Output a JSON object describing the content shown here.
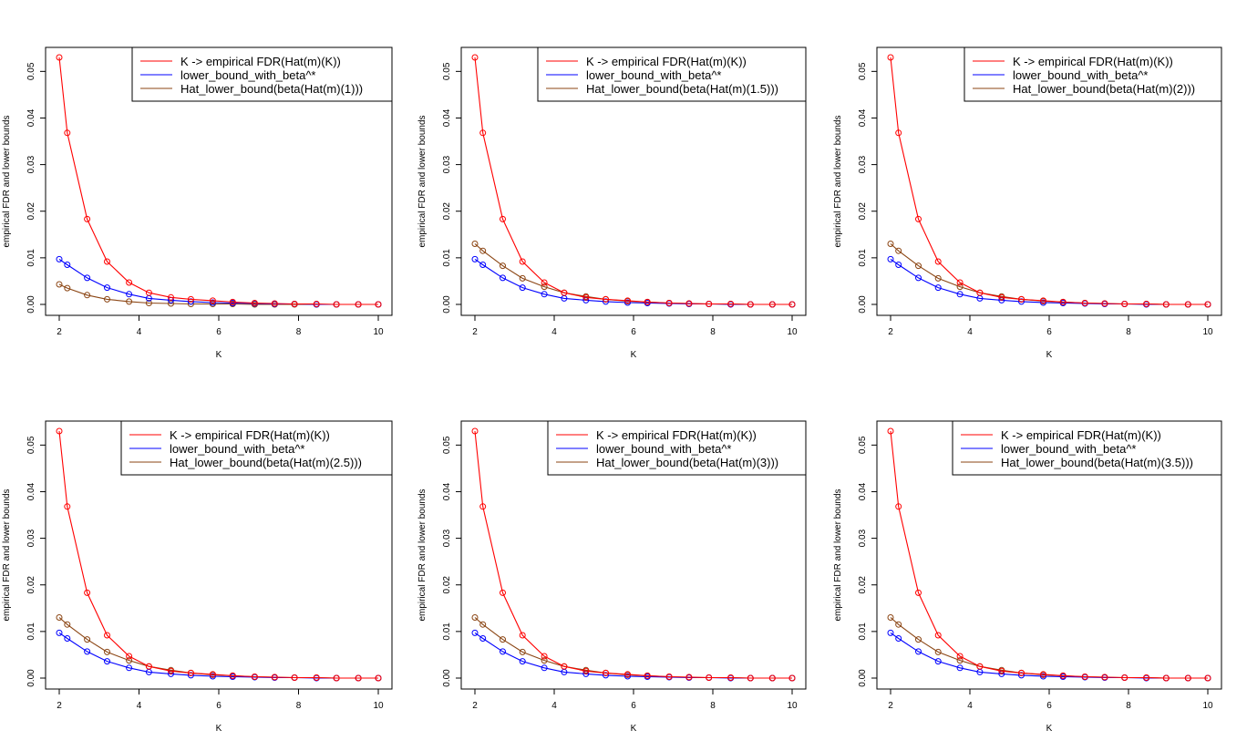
{
  "colors": {
    "empirical": "#ff0000",
    "lower_bound": "#0000ff",
    "hat_lower_bound": "#8b4513"
  },
  "chart_data": [
    {
      "type": "line",
      "xlabel": "K",
      "ylabel": "empirical FDR and lower bounds",
      "xlim": [
        2,
        10
      ],
      "ylim": [
        0,
        0.055
      ],
      "xticks": [
        "2",
        "4",
        "6",
        "8",
        "10"
      ],
      "yticks": [
        "0.00",
        "0.01",
        "0.02",
        "0.03",
        "0.04",
        "0.05"
      ],
      "legend_position": "top-right",
      "x": [
        2.0,
        2.2,
        2.7,
        3.2,
        3.75,
        4.25,
        4.8,
        5.3,
        5.85,
        6.35,
        6.9,
        7.4,
        7.9,
        8.45,
        8.95,
        9.5,
        10.0
      ],
      "series": [
        {
          "name": "K -> empirical FDR(Hat(m)(K))",
          "color": "#ff0000",
          "values": [
            0.053,
            0.0368,
            0.0183,
            0.0092,
            0.0047,
            0.0025,
            0.0015,
            0.0011,
            0.0008,
            0.0005,
            0.0003,
            0.0002,
            0.0001,
            0.0001,
            0.0,
            0.0,
            0.0
          ]
        },
        {
          "name": "lower_bound_with_beta^*",
          "color": "#0000ff",
          "values": [
            0.0097,
            0.0085,
            0.0057,
            0.0036,
            0.0022,
            0.0013,
            0.0009,
            0.0006,
            0.0004,
            0.0003,
            0.0002,
            0.0001,
            0.0001,
            0.0,
            0.0,
            0.0,
            0.0
          ]
        },
        {
          "name": "Hat_lower_bound(beta(Hat(m)(1)))",
          "color": "#8b4513",
          "values": [
            0.0043,
            0.0035,
            0.002,
            0.0011,
            0.0006,
            0.0003,
            0.0002,
            0.0001,
            0.0001,
            0.0001,
            0.0,
            0.0,
            0.0,
            0.0,
            0.0,
            0.0,
            0.0
          ]
        }
      ]
    },
    {
      "type": "line",
      "xlabel": "K",
      "ylabel": "empirical FDR and lower bounds",
      "xlim": [
        2,
        10
      ],
      "ylim": [
        0,
        0.055
      ],
      "xticks": [
        "2",
        "4",
        "6",
        "8",
        "10"
      ],
      "yticks": [
        "0.00",
        "0.01",
        "0.02",
        "0.03",
        "0.04",
        "0.05"
      ],
      "legend_position": "top-right",
      "x": [
        2.0,
        2.2,
        2.7,
        3.2,
        3.75,
        4.25,
        4.8,
        5.3,
        5.85,
        6.35,
        6.9,
        7.4,
        7.9,
        8.45,
        8.95,
        9.5,
        10.0
      ],
      "series": [
        {
          "name": "K -> empirical FDR(Hat(m)(K))",
          "color": "#ff0000",
          "values": [
            0.053,
            0.0368,
            0.0183,
            0.0092,
            0.0047,
            0.0025,
            0.0015,
            0.0011,
            0.0008,
            0.0005,
            0.0003,
            0.0002,
            0.0001,
            0.0001,
            0.0,
            0.0,
            0.0
          ]
        },
        {
          "name": "lower_bound_with_beta^*",
          "color": "#0000ff",
          "values": [
            0.0097,
            0.0085,
            0.0057,
            0.0036,
            0.0022,
            0.0013,
            0.0009,
            0.0006,
            0.0004,
            0.0003,
            0.0002,
            0.0001,
            0.0001,
            0.0,
            0.0,
            0.0,
            0.0
          ]
        },
        {
          "name": "Hat_lower_bound(beta(Hat(m)(1.5)))",
          "color": "#8b4513",
          "values": [
            0.013,
            0.0115,
            0.0083,
            0.0056,
            0.0038,
            0.0025,
            0.0017,
            0.0011,
            0.0007,
            0.0005,
            0.0003,
            0.0002,
            0.0001,
            0.0001,
            0.0,
            0.0,
            0.0
          ]
        }
      ]
    },
    {
      "type": "line",
      "xlabel": "K",
      "ylabel": "empirical FDR and lower bounds",
      "xlim": [
        2,
        10
      ],
      "ylim": [
        0,
        0.055
      ],
      "xticks": [
        "2",
        "4",
        "6",
        "8",
        "10"
      ],
      "yticks": [
        "0.00",
        "0.01",
        "0.02",
        "0.03",
        "0.04",
        "0.05"
      ],
      "legend_position": "top-right",
      "x": [
        2.0,
        2.2,
        2.7,
        3.2,
        3.75,
        4.25,
        4.8,
        5.3,
        5.85,
        6.35,
        6.9,
        7.4,
        7.9,
        8.45,
        8.95,
        9.5,
        10.0
      ],
      "series": [
        {
          "name": "K -> empirical FDR(Hat(m)(K))",
          "color": "#ff0000",
          "values": [
            0.053,
            0.0368,
            0.0183,
            0.0092,
            0.0047,
            0.0025,
            0.0015,
            0.0011,
            0.0008,
            0.0005,
            0.0003,
            0.0002,
            0.0001,
            0.0001,
            0.0,
            0.0,
            0.0
          ]
        },
        {
          "name": "lower_bound_with_beta^*",
          "color": "#0000ff",
          "values": [
            0.0097,
            0.0085,
            0.0057,
            0.0036,
            0.0022,
            0.0013,
            0.0009,
            0.0006,
            0.0004,
            0.0003,
            0.0002,
            0.0001,
            0.0001,
            0.0,
            0.0,
            0.0,
            0.0
          ]
        },
        {
          "name": "Hat_lower_bound(beta(Hat(m)(2)))",
          "color": "#8b4513",
          "values": [
            0.013,
            0.0115,
            0.0083,
            0.0056,
            0.0038,
            0.0025,
            0.0017,
            0.0011,
            0.0007,
            0.0005,
            0.0003,
            0.0002,
            0.0001,
            0.0001,
            0.0,
            0.0,
            0.0
          ]
        }
      ]
    },
    {
      "type": "line",
      "xlabel": "K",
      "ylabel": "empirical FDR and lower bounds",
      "xlim": [
        2,
        10
      ],
      "ylim": [
        0,
        0.055
      ],
      "xticks": [
        "2",
        "4",
        "6",
        "8",
        "10"
      ],
      "yticks": [
        "0.00",
        "0.01",
        "0.02",
        "0.03",
        "0.04",
        "0.05"
      ],
      "legend_position": "top-right",
      "x": [
        2.0,
        2.2,
        2.7,
        3.2,
        3.75,
        4.25,
        4.8,
        5.3,
        5.85,
        6.35,
        6.9,
        7.4,
        7.9,
        8.45,
        8.95,
        9.5,
        10.0
      ],
      "series": [
        {
          "name": "K -> empirical FDR(Hat(m)(K))",
          "color": "#ff0000",
          "values": [
            0.053,
            0.0368,
            0.0183,
            0.0092,
            0.0047,
            0.0025,
            0.0015,
            0.0011,
            0.0008,
            0.0005,
            0.0003,
            0.0002,
            0.0001,
            0.0001,
            0.0,
            0.0,
            0.0
          ]
        },
        {
          "name": "lower_bound_with_beta^*",
          "color": "#0000ff",
          "values": [
            0.0097,
            0.0085,
            0.0057,
            0.0036,
            0.0022,
            0.0013,
            0.0009,
            0.0006,
            0.0004,
            0.0003,
            0.0002,
            0.0001,
            0.0001,
            0.0,
            0.0,
            0.0,
            0.0
          ]
        },
        {
          "name": "Hat_lower_bound(beta(Hat(m)(2.5)))",
          "color": "#8b4513",
          "values": [
            0.013,
            0.0115,
            0.0083,
            0.0056,
            0.0038,
            0.0025,
            0.0017,
            0.0011,
            0.0007,
            0.0005,
            0.0003,
            0.0002,
            0.0001,
            0.0001,
            0.0,
            0.0,
            0.0
          ]
        }
      ]
    },
    {
      "type": "line",
      "xlabel": "K",
      "ylabel": "empirical FDR and lower bounds",
      "xlim": [
        2,
        10
      ],
      "ylim": [
        0,
        0.055
      ],
      "xticks": [
        "2",
        "4",
        "6",
        "8",
        "10"
      ],
      "yticks": [
        "0.00",
        "0.01",
        "0.02",
        "0.03",
        "0.04",
        "0.05"
      ],
      "legend_position": "top-right",
      "x": [
        2.0,
        2.2,
        2.7,
        3.2,
        3.75,
        4.25,
        4.8,
        5.3,
        5.85,
        6.35,
        6.9,
        7.4,
        7.9,
        8.45,
        8.95,
        9.5,
        10.0
      ],
      "series": [
        {
          "name": "K -> empirical FDR(Hat(m)(K))",
          "color": "#ff0000",
          "values": [
            0.053,
            0.0368,
            0.0183,
            0.0092,
            0.0047,
            0.0025,
            0.0015,
            0.0011,
            0.0008,
            0.0005,
            0.0003,
            0.0002,
            0.0001,
            0.0001,
            0.0,
            0.0,
            0.0
          ]
        },
        {
          "name": "lower_bound_with_beta^*",
          "color": "#0000ff",
          "values": [
            0.0097,
            0.0085,
            0.0057,
            0.0036,
            0.0022,
            0.0013,
            0.0009,
            0.0006,
            0.0004,
            0.0003,
            0.0002,
            0.0001,
            0.0001,
            0.0,
            0.0,
            0.0,
            0.0
          ]
        },
        {
          "name": "Hat_lower_bound(beta(Hat(m)(3)))",
          "color": "#8b4513",
          "values": [
            0.013,
            0.0115,
            0.0083,
            0.0056,
            0.0038,
            0.0025,
            0.0017,
            0.0011,
            0.0007,
            0.0005,
            0.0003,
            0.0002,
            0.0001,
            0.0001,
            0.0,
            0.0,
            0.0
          ]
        }
      ]
    },
    {
      "type": "line",
      "xlabel": "K",
      "ylabel": "empirical FDR and lower bounds",
      "xlim": [
        2,
        10
      ],
      "ylim": [
        0,
        0.055
      ],
      "xticks": [
        "2",
        "4",
        "6",
        "8",
        "10"
      ],
      "yticks": [
        "0.00",
        "0.01",
        "0.02",
        "0.03",
        "0.04",
        "0.05"
      ],
      "legend_position": "top-right",
      "x": [
        2.0,
        2.2,
        2.7,
        3.2,
        3.75,
        4.25,
        4.8,
        5.3,
        5.85,
        6.35,
        6.9,
        7.4,
        7.9,
        8.45,
        8.95,
        9.5,
        10.0
      ],
      "series": [
        {
          "name": "K -> empirical FDR(Hat(m)(K))",
          "color": "#ff0000",
          "values": [
            0.053,
            0.0368,
            0.0183,
            0.0092,
            0.0047,
            0.0025,
            0.0015,
            0.0011,
            0.0008,
            0.0005,
            0.0003,
            0.0002,
            0.0001,
            0.0001,
            0.0,
            0.0,
            0.0
          ]
        },
        {
          "name": "lower_bound_with_beta^*",
          "color": "#0000ff",
          "values": [
            0.0097,
            0.0085,
            0.0057,
            0.0036,
            0.0022,
            0.0013,
            0.0009,
            0.0006,
            0.0004,
            0.0003,
            0.0002,
            0.0001,
            0.0001,
            0.0,
            0.0,
            0.0,
            0.0
          ]
        },
        {
          "name": "Hat_lower_bound(beta(Hat(m)(3.5)))",
          "color": "#8b4513",
          "values": [
            0.013,
            0.0115,
            0.0083,
            0.0056,
            0.0038,
            0.0025,
            0.0017,
            0.0011,
            0.0007,
            0.0005,
            0.0003,
            0.0002,
            0.0001,
            0.0001,
            0.0,
            0.0,
            0.0
          ]
        }
      ]
    }
  ]
}
